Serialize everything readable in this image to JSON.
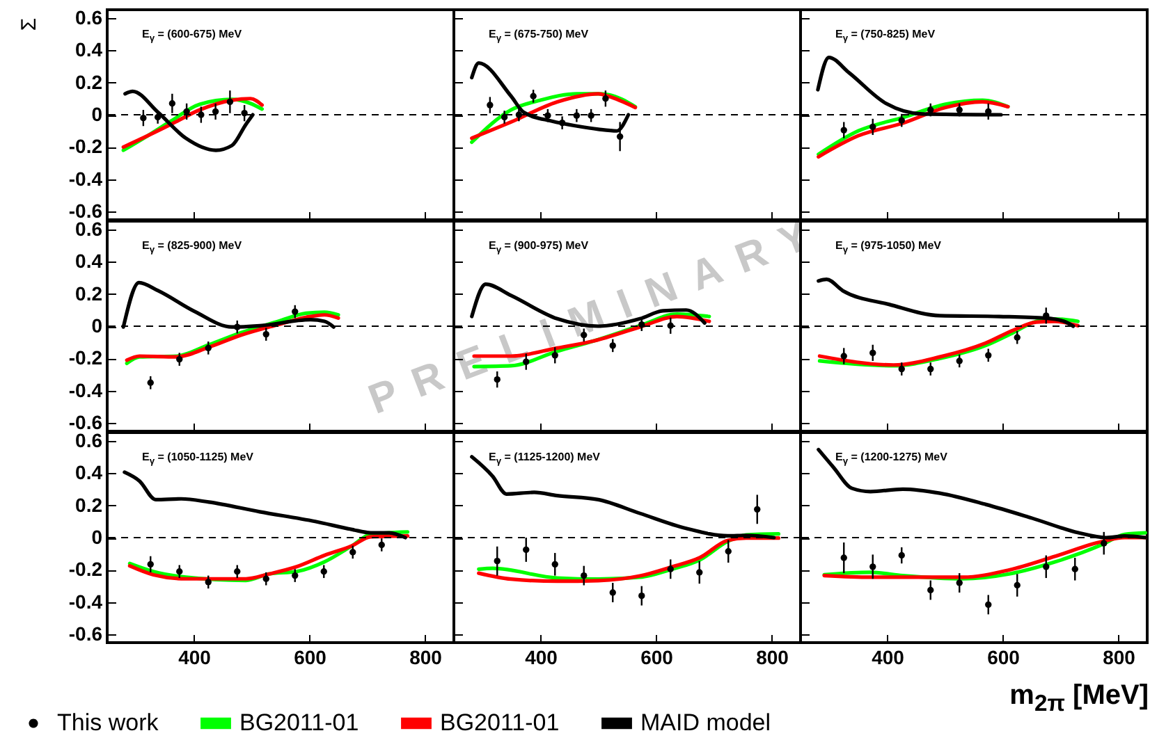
{
  "chart_data": [
    {
      "type": "line",
      "title": "E$_{γ}$ = (600-675) MeV",
      "ylabel": "Σ",
      "xlim": [
        250,
        850
      ],
      "ylim": [
        -0.65,
        0.65
      ],
      "xticks": [
        400,
        600,
        800
      ],
      "yticks": [
        -0.6,
        -0.4,
        -0.2,
        0,
        0.2,
        0.4,
        0.6
      ],
      "tick_labels": "y",
      "ref_lines": [
        {
          "axis": "y",
          "value": 0,
          "color": "#000000",
          "line_style": "dashed"
        }
      ],
      "series": [
        {
          "type": "scatter",
          "marker": "circle",
          "color": "#000000",
          "x": [
            312.5,
            337.5,
            362.5,
            387.5,
            412.5,
            437.5,
            462.5,
            487.5
          ],
          "values": [
            -0.02,
            -0.015,
            0.07,
            0.02,
            0,
            0.02,
            0.08,
            0.01
          ],
          "errors": [
            0.05,
            0.04,
            0.06,
            0.05,
            0.05,
            0.05,
            0.07,
            0.05
          ]
        },
        {
          "color": "#00ff00",
          "x": [
            278,
            320,
            360,
            410,
            466,
            498,
            518
          ],
          "values": [
            -0.22,
            -0.13,
            -0.04,
            0.065,
            0.095,
            0.07,
            0.035
          ]
        },
        {
          "color": "#ff0000",
          "x": [
            278,
            320,
            360,
            410,
            466,
            498,
            518
          ],
          "values": [
            -0.2,
            -0.13,
            -0.06,
            0.03,
            0.09,
            0.1,
            0.06
          ]
        },
        {
          "color": "#000000",
          "x": [
            281,
            294,
            338,
            386,
            438,
            466,
            490,
            502
          ],
          "values": [
            0.13,
            0.145,
            0.015,
            -0.145,
            -0.22,
            -0.19,
            -0.06,
            0
          ]
        }
      ]
    },
    {
      "type": "line",
      "title": "E$_{γ}$ = (675-750) MeV",
      "xlim": [
        250,
        850
      ],
      "ylim": [
        -0.65,
        0.65
      ],
      "xticks": [
        400,
        600,
        800
      ],
      "yticks": [
        -0.6,
        -0.4,
        -0.2,
        0,
        0.2,
        0.4,
        0.6
      ],
      "tick_labels": false,
      "ref_lines": [
        {
          "axis": "y",
          "value": 0,
          "color": "#000000",
          "line_style": "dashed"
        }
      ],
      "series": [
        {
          "type": "scatter",
          "marker": "circle",
          "color": "#000000",
          "x": [
            312.5,
            337.5,
            362.5,
            387.5,
            412.5,
            437.5,
            462.5,
            487.5,
            512.5,
            537.5
          ],
          "values": [
            0.06,
            -0.015,
            0,
            0.115,
            -0.005,
            -0.05,
            -0.005,
            -0.005,
            0.1,
            -0.135
          ],
          "errors": [
            0.05,
            0.04,
            0.04,
            0.04,
            0.04,
            0.04,
            0.04,
            0.04,
            0.05,
            0.09
          ]
        },
        {
          "color": "#00ff00",
          "x": [
            281,
            349,
            400,
            463,
            500,
            517,
            564
          ],
          "values": [
            -0.17,
            0.03,
            0.09,
            0.13,
            0.13,
            0.125,
            0.05
          ]
        },
        {
          "color": "#ff0000",
          "x": [
            281,
            349,
            429,
            500,
            517,
            564
          ],
          "values": [
            -0.145,
            -0.045,
            0.08,
            0.13,
            0.115,
            0.045
          ]
        },
        {
          "color": "#000000",
          "x": [
            281,
            293,
            349,
            371,
            420,
            463,
            500,
            532,
            552
          ],
          "values": [
            0.23,
            0.32,
            0.115,
            0.015,
            -0.04,
            -0.07,
            -0.09,
            -0.1,
            0
          ]
        }
      ]
    },
    {
      "type": "line",
      "title": "E$_{γ}$ = (750-825) MeV",
      "xlim": [
        250,
        850
      ],
      "ylim": [
        -0.65,
        0.65
      ],
      "xticks": [
        400,
        600,
        800
      ],
      "yticks": [
        -0.6,
        -0.4,
        -0.2,
        0,
        0.2,
        0.4,
        0.6
      ],
      "tick_labels": false,
      "ref_lines": [
        {
          "axis": "y",
          "value": 0,
          "color": "#000000",
          "line_style": "dashed"
        }
      ],
      "series": [
        {
          "type": "scatter",
          "marker": "circle",
          "color": "#000000",
          "x": [
            325,
            375,
            425,
            475,
            525,
            575
          ],
          "values": [
            -0.095,
            -0.075,
            -0.035,
            0.03,
            0.03,
            0.02
          ],
          "errors": [
            0.05,
            0.05,
            0.04,
            0.04,
            0.04,
            0.05
          ]
        },
        {
          "color": "#00ff00",
          "x": [
            281,
            350,
            429,
            501,
            565,
            609
          ],
          "values": [
            -0.245,
            -0.1,
            -0.015,
            0.065,
            0.09,
            0.05
          ]
        },
        {
          "color": "#ff0000",
          "x": [
            281,
            350,
            429,
            501,
            565,
            609
          ],
          "values": [
            -0.26,
            -0.13,
            -0.05,
            0.045,
            0.08,
            0.05
          ]
        },
        {
          "color": "#000000",
          "x": [
            280,
            299,
            334,
            398,
            461,
            597
          ],
          "values": [
            0.155,
            0.355,
            0.26,
            0.07,
            0.005,
            0
          ]
        }
      ]
    },
    {
      "type": "line",
      "title": "E$_{γ}$ = (825-900) MeV",
      "xlim": [
        250,
        850
      ],
      "ylim": [
        -0.65,
        0.65
      ],
      "xticks": [
        400,
        600,
        800
      ],
      "yticks": [
        -0.6,
        -0.4,
        -0.2,
        0,
        0.2,
        0.4,
        0.6
      ],
      "tick_labels": "y",
      "ref_lines": [
        {
          "axis": "y",
          "value": 0,
          "color": "#000000",
          "line_style": "dashed"
        }
      ],
      "series": [
        {
          "type": "scatter",
          "marker": "circle",
          "color": "#000000",
          "x": [
            325,
            375,
            425,
            475,
            525,
            575
          ],
          "values": [
            -0.35,
            -0.205,
            -0.135,
            -0.005,
            -0.05,
            0.09
          ],
          "errors": [
            0.04,
            0.04,
            0.04,
            0.04,
            0.04,
            0.04
          ]
        },
        {
          "color": "#00ff00",
          "x": [
            284,
            306,
            370,
            426,
            482,
            546,
            594,
            626,
            650
          ],
          "values": [
            -0.23,
            -0.19,
            -0.185,
            -0.115,
            -0.04,
            0.03,
            0.08,
            0.087,
            0.07
          ]
        },
        {
          "color": "#ff0000",
          "x": [
            284,
            306,
            370,
            426,
            482,
            546,
            594,
            626,
            650
          ],
          "values": [
            -0.21,
            -0.185,
            -0.19,
            -0.13,
            -0.055,
            0.01,
            0.055,
            0.07,
            0.05
          ]
        },
        {
          "color": "#000000",
          "x": [
            278,
            305,
            338,
            402,
            466,
            514,
            602,
            626,
            642
          ],
          "values": [
            -0.005,
            0.27,
            0.22,
            0.09,
            -0.005,
            0.003,
            0.04,
            0.03,
            -0.005
          ]
        }
      ]
    },
    {
      "type": "line",
      "title": "E$_{γ}$ = (900-975) MeV",
      "annotations": [
        "PRELIMINARY"
      ],
      "xlim": [
        250,
        850
      ],
      "ylim": [
        -0.65,
        0.65
      ],
      "xticks": [
        400,
        600,
        800
      ],
      "yticks": [
        -0.6,
        -0.4,
        -0.2,
        0,
        0.2,
        0.4,
        0.6
      ],
      "tick_labels": false,
      "ref_lines": [
        {
          "axis": "y",
          "value": 0,
          "color": "#000000",
          "line_style": "dashed"
        }
      ],
      "series": [
        {
          "type": "scatter",
          "marker": "circle",
          "color": "#000000",
          "x": [
            325,
            375,
            425,
            475,
            525,
            575,
            625
          ],
          "values": [
            -0.33,
            -0.22,
            -0.18,
            -0.055,
            -0.12,
            0.01,
            0.003
          ],
          "errors": [
            0.05,
            0.05,
            0.05,
            0.04,
            0.04,
            0.04,
            0.05
          ]
        },
        {
          "color": "#00ff00",
          "x": [
            285,
            349,
            429,
            493,
            572,
            636,
            692
          ],
          "values": [
            -0.25,
            -0.245,
            -0.155,
            -0.09,
            0.003,
            0.075,
            0.06
          ]
        },
        {
          "color": "#ff0000",
          "x": [
            285,
            349,
            429,
            493,
            572,
            636,
            692
          ],
          "values": [
            -0.185,
            -0.185,
            -0.135,
            -0.09,
            -0.005,
            0.06,
            0.03
          ]
        },
        {
          "color": "#000000",
          "x": [
            281,
            305,
            349,
            429,
            500,
            572,
            612,
            652,
            684
          ],
          "values": [
            0.06,
            0.26,
            0.19,
            0.046,
            0,
            0.046,
            0.095,
            0.1,
            0.02
          ]
        }
      ]
    },
    {
      "type": "line",
      "title": "E$_{γ}$ = (975-1050) MeV",
      "xlim": [
        250,
        850
      ],
      "ylim": [
        -0.65,
        0.65
      ],
      "xticks": [
        400,
        600,
        800
      ],
      "yticks": [
        -0.6,
        -0.4,
        -0.2,
        0,
        0.2,
        0.4,
        0.6
      ],
      "tick_labels": false,
      "ref_lines": [
        {
          "axis": "y",
          "value": 0,
          "color": "#000000",
          "line_style": "dashed"
        }
      ],
      "series": [
        {
          "type": "scatter",
          "marker": "circle",
          "color": "#000000",
          "x": [
            325,
            375,
            425,
            475,
            525,
            575,
            625,
            675
          ],
          "values": [
            -0.185,
            -0.165,
            -0.265,
            -0.265,
            -0.215,
            -0.18,
            -0.07,
            0.065
          ],
          "errors": [
            0.05,
            0.05,
            0.04,
            0.04,
            0.04,
            0.04,
            0.04,
            0.05
          ]
        },
        {
          "color": "#00ff00",
          "x": [
            283,
            411,
            491,
            570,
            618,
            658,
            690,
            730
          ],
          "values": [
            -0.215,
            -0.245,
            -0.2,
            -0.12,
            -0.04,
            0.03,
            0.045,
            0.03
          ]
        },
        {
          "color": "#ff0000",
          "x": [
            283,
            411,
            491,
            570,
            618,
            658,
            690,
            730
          ],
          "values": [
            -0.185,
            -0.24,
            -0.19,
            -0.105,
            -0.025,
            0.025,
            0.03,
            0.003
          ]
        },
        {
          "color": "#000000",
          "x": [
            281,
            295,
            323,
            403,
            491,
            594,
            674,
            706,
            722
          ],
          "values": [
            0.28,
            0.29,
            0.22,
            0.135,
            0.065,
            0.06,
            0.05,
            0.03,
            0
          ]
        }
      ]
    },
    {
      "type": "line",
      "title": "E$_{γ}$ = (1050-1125) MeV",
      "xlim": [
        250,
        850
      ],
      "ylim": [
        -0.65,
        0.65
      ],
      "xticks": [
        400,
        600,
        800
      ],
      "yticks": [
        -0.6,
        -0.4,
        -0.2,
        0,
        0.2,
        0.4,
        0.6
      ],
      "legend": "bottom",
      "ref_lines": [
        {
          "axis": "y",
          "value": 0,
          "color": "#000000",
          "line_style": "dashed"
        }
      ],
      "series": [
        {
          "name": "This work",
          "type": "scatter",
          "marker": "circle",
          "color": "#000000",
          "x": [
            325,
            375,
            425,
            475,
            525,
            575,
            625,
            675,
            725
          ],
          "values": [
            -0.165,
            -0.21,
            -0.275,
            -0.21,
            -0.255,
            -0.235,
            -0.21,
            -0.09,
            -0.045
          ],
          "errors": [
            0.05,
            0.04,
            0.04,
            0.04,
            0.04,
            0.04,
            0.04,
            0.04,
            0.04
          ]
        },
        {
          "name": "BG2011-01",
          "color": "#00ff00",
          "x": [
            289,
            330,
            386,
            490,
            530,
            578,
            626,
            674,
            706,
            770
          ],
          "values": [
            -0.16,
            -0.21,
            -0.245,
            -0.265,
            -0.225,
            -0.21,
            -0.15,
            -0.05,
            0.02,
            0.035
          ]
        },
        {
          "name": "BG2011-01",
          "color": "#ff0000",
          "x": [
            289,
            330,
            386,
            490,
            530,
            578,
            626,
            674,
            706,
            770
          ],
          "values": [
            -0.175,
            -0.23,
            -0.255,
            -0.255,
            -0.225,
            -0.18,
            -0.11,
            -0.05,
            0.005,
            0.01
          ]
        },
        {
          "name": "MAID model",
          "color": "#000000",
          "x": [
            280,
            306,
            334,
            378,
            426,
            514,
            610,
            674,
            706,
            738,
            766
          ],
          "values": [
            0.405,
            0.35,
            0.235,
            0.24,
            0.22,
            0.16,
            0.1,
            0.05,
            0.03,
            0.03,
            0
          ]
        }
      ]
    },
    {
      "type": "line",
      "title": "E$_{γ}$ = (1125-1200) MeV",
      "xlim": [
        250,
        850
      ],
      "ylim": [
        -0.65,
        0.65
      ],
      "xticks": [
        400,
        600,
        800
      ],
      "yticks": [
        -0.6,
        -0.4,
        -0.2,
        0,
        0.2,
        0.4,
        0.6
      ],
      "tick_labels": "x",
      "ref_lines": [
        {
          "axis": "y",
          "value": 0,
          "color": "#000000",
          "line_style": "dashed"
        }
      ],
      "series": [
        {
          "type": "scatter",
          "marker": "circle",
          "color": "#000000",
          "x": [
            325,
            375,
            425,
            475,
            525,
            575,
            625,
            675,
            725,
            775
          ],
          "values": [
            -0.145,
            -0.075,
            -0.165,
            -0.235,
            -0.34,
            -0.36,
            -0.195,
            -0.215,
            -0.085,
            0.175
          ],
          "errors": [
            0.09,
            0.075,
            0.07,
            0.06,
            0.06,
            0.06,
            0.06,
            0.07,
            0.07,
            0.09
          ]
        },
        {
          "color": "#00ff00",
          "x": [
            293,
            317,
            429,
            500,
            572,
            628,
            676,
            724,
            756,
            812
          ],
          "values": [
            -0.195,
            -0.19,
            -0.25,
            -0.257,
            -0.245,
            -0.195,
            -0.137,
            -0.023,
            0.017,
            0.023
          ]
        },
        {
          "color": "#ff0000",
          "x": [
            293,
            349,
            429,
            500,
            572,
            628,
            676,
            724,
            756,
            812
          ],
          "values": [
            -0.22,
            -0.257,
            -0.27,
            -0.266,
            -0.237,
            -0.18,
            -0.123,
            -0.017,
            -0.003,
            -0.003
          ]
        },
        {
          "color": "#000000",
          "x": [
            281,
            317,
            341,
            389,
            429,
            500,
            572,
            652,
            724,
            756,
            804
          ],
          "values": [
            0.5,
            0.38,
            0.27,
            0.28,
            0.26,
            0.235,
            0.15,
            0.057,
            0.011,
            0.014,
            0
          ]
        }
      ]
    },
    {
      "type": "line",
      "title": "E$_{γ}$ = (1200-1275) MeV",
      "xlabel": "m$_{2π}$ [MeV]",
      "xlim": [
        250,
        850
      ],
      "ylim": [
        -0.65,
        0.65
      ],
      "xticks": [
        400,
        600,
        800
      ],
      "yticks": [
        -0.6,
        -0.4,
        -0.2,
        0,
        0.2,
        0.4,
        0.6
      ],
      "tick_labels": "x",
      "ref_lines": [
        {
          "axis": "y",
          "value": 0,
          "color": "#000000",
          "line_style": "dashed"
        }
      ],
      "series": [
        {
          "type": "scatter",
          "marker": "circle",
          "color": "#000000",
          "x": [
            325,
            375,
            425,
            475,
            525,
            575,
            625,
            675,
            725,
            775
          ],
          "values": [
            -0.125,
            -0.18,
            -0.11,
            -0.325,
            -0.28,
            -0.415,
            -0.295,
            -0.18,
            -0.195,
            -0.035
          ],
          "errors": [
            0.095,
            0.075,
            0.05,
            0.06,
            0.06,
            0.06,
            0.07,
            0.07,
            0.07,
            0.07
          ]
        },
        {
          "color": "#00ff00",
          "x": [
            291,
            371,
            427,
            531,
            611,
            691,
            771,
            811,
            847
          ],
          "values": [
            -0.23,
            -0.215,
            -0.235,
            -0.255,
            -0.225,
            -0.15,
            -0.045,
            0.02,
            0.03
          ]
        },
        {
          "color": "#ff0000",
          "x": [
            291,
            371,
            427,
            531,
            611,
            691,
            771,
            811,
            847
          ],
          "values": [
            -0.235,
            -0.245,
            -0.245,
            -0.245,
            -0.2,
            -0.115,
            -0.025,
            0,
            0
          ]
        },
        {
          "color": "#000000",
          "x": [
            281,
            307,
            339,
            371,
            427,
            491,
            571,
            651,
            731,
            779,
            811,
            847
          ],
          "values": [
            0.545,
            0.435,
            0.305,
            0.285,
            0.3,
            0.275,
            0.205,
            0.12,
            0.03,
            0,
            0.01,
            0
          ]
        }
      ]
    }
  ]
}
